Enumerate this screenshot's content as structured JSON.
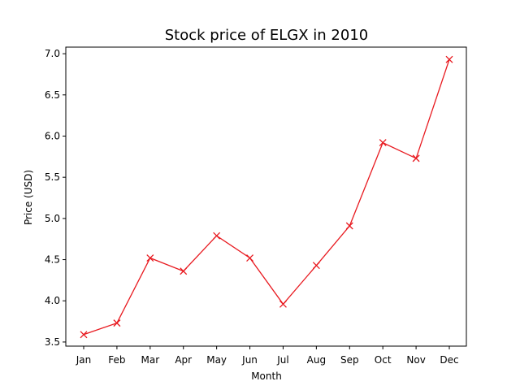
{
  "chart_data": {
    "type": "line",
    "title": "Stock price of ELGX in 2010",
    "xlabel": "Month",
    "ylabel": "Price (USD)",
    "categories": [
      "Jan",
      "Feb",
      "Mar",
      "Apr",
      "May",
      "Jun",
      "Jul",
      "Aug",
      "Sep",
      "Oct",
      "Nov",
      "Dec"
    ],
    "series": [
      {
        "values": [
          3.59,
          3.73,
          4.52,
          4.36,
          4.79,
          4.52,
          3.96,
          4.43,
          4.91,
          5.92,
          5.73,
          6.93
        ],
        "color": "#e8191f",
        "marker": "x"
      }
    ],
    "ylim": [
      3.45,
      7.08
    ],
    "yticks": [
      "3.5",
      "4.0",
      "4.5",
      "5.0",
      "5.5",
      "6.0",
      "6.5",
      "7.0"
    ],
    "grid": false,
    "legend": "none"
  }
}
